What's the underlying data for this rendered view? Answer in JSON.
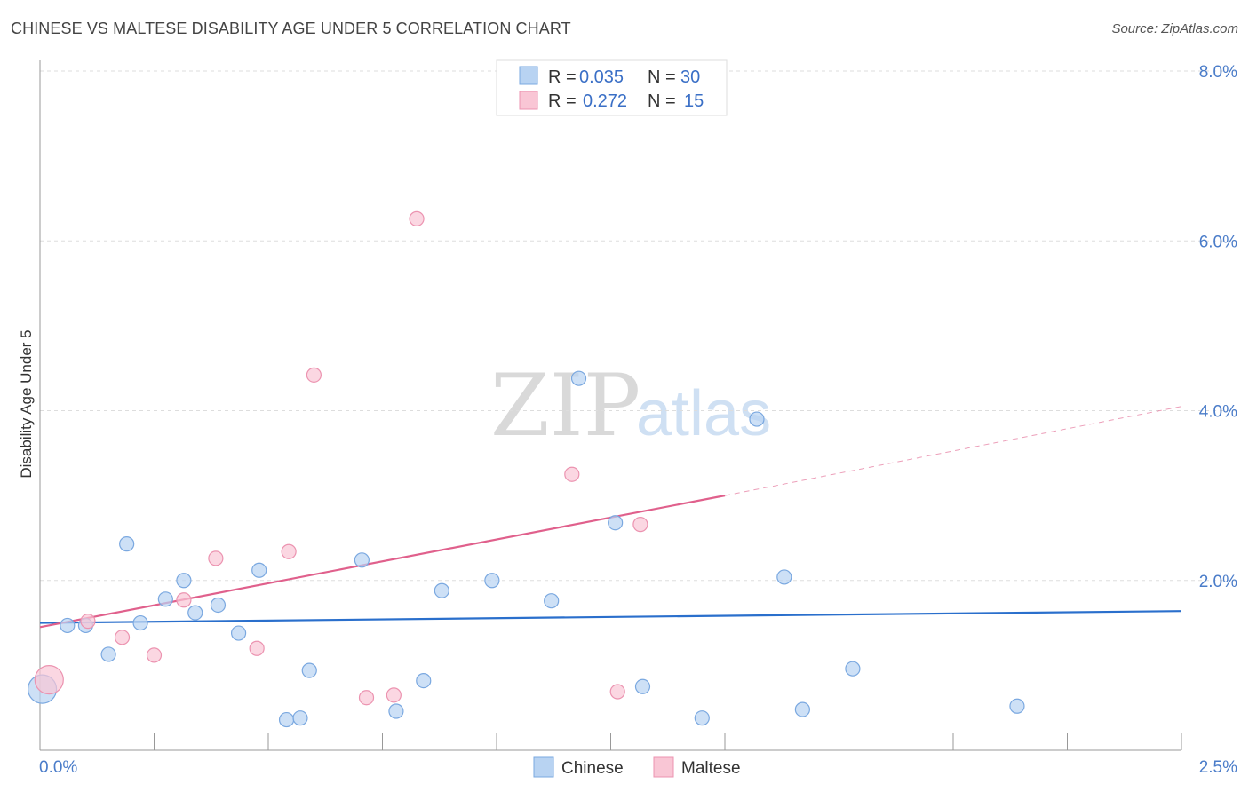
{
  "title": "CHINESE VS MALTESE DISABILITY AGE UNDER 5 CORRELATION CHART",
  "source": "Source: ZipAtlas.com",
  "watermark": {
    "zip": "ZIP",
    "atlas": "atlas"
  },
  "colors": {
    "chinese_fill": "#b8d3f2",
    "chinese_stroke": "#7aa8e0",
    "chinese_line": "#2a6fcc",
    "maltese_fill": "#f9c6d5",
    "maltese_stroke": "#ec93b0",
    "maltese_line": "#e0608c",
    "grid": "#dddddd",
    "axis": "#999999"
  },
  "legend": {
    "rows": [
      {
        "r_label": "R =",
        "r_value": "0.035",
        "n_label": "N =",
        "n_value": "30"
      },
      {
        "r_label": "R =",
        "r_value": "0.272",
        "n_label": "N =",
        "n_value": "15"
      }
    ]
  },
  "chart_data": {
    "type": "scatter",
    "title": "CHINESE VS MALTESE DISABILITY AGE UNDER 5 CORRELATION CHART",
    "xlabel": "",
    "ylabel": "Disability Age Under 5",
    "xlim": [
      0,
      2.5
    ],
    "ylim": [
      0,
      8.0
    ],
    "x_tick_labels": [
      "0.0%",
      "2.5%"
    ],
    "y_ticks": [
      2.0,
      4.0,
      6.0,
      8.0
    ],
    "y_tick_labels": [
      "2.0%",
      "4.0%",
      "6.0%",
      "8.0%"
    ],
    "grid": true,
    "series": [
      {
        "name": "Chinese",
        "r": 0.035,
        "n": 30,
        "trend": {
          "x0": 0.0,
          "y0": 1.5,
          "x1": 2.5,
          "y1": 1.64
        },
        "points": [
          {
            "x": 0.005,
            "y": 0.72,
            "big": true
          },
          {
            "x": 0.06,
            "y": 1.47
          },
          {
            "x": 0.1,
            "y": 1.47
          },
          {
            "x": 0.15,
            "y": 1.13
          },
          {
            "x": 0.19,
            "y": 2.43
          },
          {
            "x": 0.22,
            "y": 1.5
          },
          {
            "x": 0.275,
            "y": 1.78
          },
          {
            "x": 0.315,
            "y": 2.0
          },
          {
            "x": 0.34,
            "y": 1.62
          },
          {
            "x": 0.39,
            "y": 1.71
          },
          {
            "x": 0.435,
            "y": 1.38
          },
          {
            "x": 0.48,
            "y": 2.12
          },
          {
            "x": 0.54,
            "y": 0.36
          },
          {
            "x": 0.57,
            "y": 0.38
          },
          {
            "x": 0.59,
            "y": 0.94
          },
          {
            "x": 0.705,
            "y": 2.24
          },
          {
            "x": 0.78,
            "y": 0.46
          },
          {
            "x": 0.84,
            "y": 0.82
          },
          {
            "x": 0.88,
            "y": 1.88
          },
          {
            "x": 0.99,
            "y": 2.0
          },
          {
            "x": 1.12,
            "y": 1.76
          },
          {
            "x": 1.18,
            "y": 4.38
          },
          {
            "x": 1.26,
            "y": 2.68
          },
          {
            "x": 1.32,
            "y": 0.75
          },
          {
            "x": 1.45,
            "y": 0.38
          },
          {
            "x": 1.57,
            "y": 3.9
          },
          {
            "x": 1.63,
            "y": 2.04
          },
          {
            "x": 1.67,
            "y": 0.48
          },
          {
            "x": 1.78,
            "y": 0.96
          },
          {
            "x": 2.14,
            "y": 0.52
          }
        ]
      },
      {
        "name": "Maltese",
        "r": 0.272,
        "n": 15,
        "trend": {
          "x0": 0.0,
          "y0": 1.45,
          "x1": 1.5,
          "y1": 3.0
        },
        "trend_dashed": {
          "x0": 1.5,
          "y0": 3.0,
          "x1": 2.5,
          "y1": 4.05
        },
        "points": [
          {
            "x": 0.02,
            "y": 0.83,
            "big": true
          },
          {
            "x": 0.105,
            "y": 1.52
          },
          {
            "x": 0.18,
            "y": 1.33
          },
          {
            "x": 0.25,
            "y": 1.12
          },
          {
            "x": 0.315,
            "y": 1.77
          },
          {
            "x": 0.385,
            "y": 2.26
          },
          {
            "x": 0.475,
            "y": 1.2
          },
          {
            "x": 0.545,
            "y": 2.34
          },
          {
            "x": 0.6,
            "y": 4.42
          },
          {
            "x": 0.715,
            "y": 0.62
          },
          {
            "x": 0.775,
            "y": 0.65
          },
          {
            "x": 0.825,
            "y": 6.26
          },
          {
            "x": 1.165,
            "y": 3.25
          },
          {
            "x": 1.265,
            "y": 0.69
          },
          {
            "x": 1.315,
            "y": 2.66
          }
        ]
      }
    ]
  }
}
